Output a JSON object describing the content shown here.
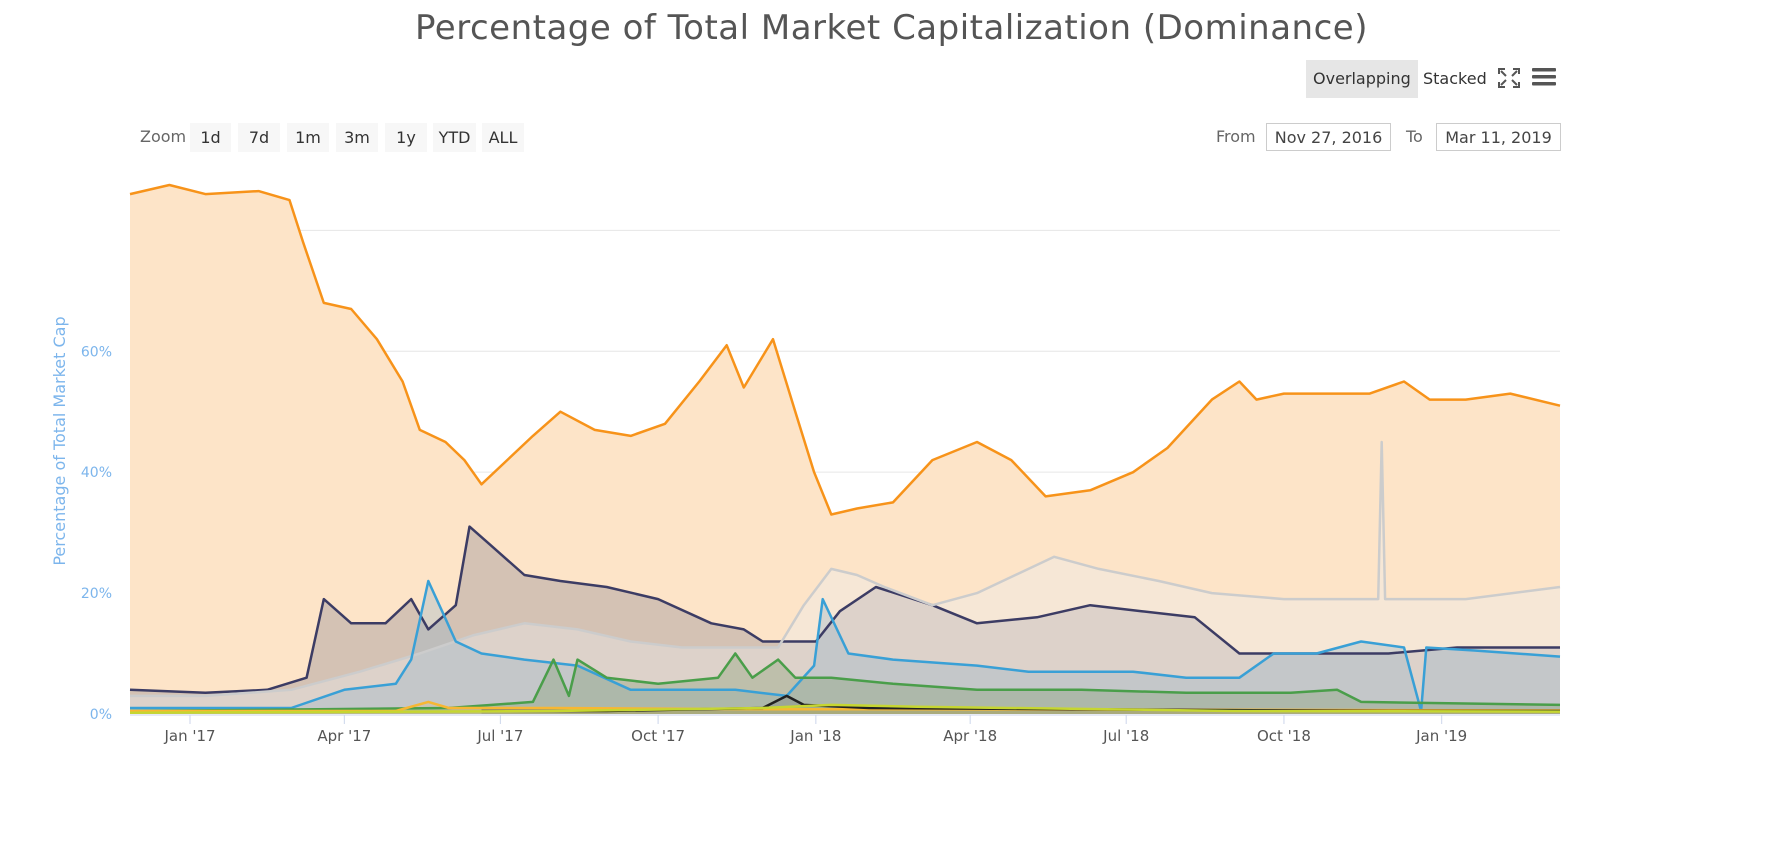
{
  "chart_title": "Percentage of Total Market Capitalization (Dominance)",
  "toolbar": {
    "overlapping_label": "Overlapping",
    "stacked_label": "Stacked",
    "fullscreen_icon": "fullscreen-icon",
    "menu_icon": "menu-icon"
  },
  "zoom": {
    "label": "Zoom",
    "buttons": [
      "1d",
      "7d",
      "1m",
      "3m",
      "1y",
      "YTD",
      "ALL"
    ]
  },
  "range": {
    "from_label": "From",
    "from_value": "Nov 27, 2016",
    "to_label": "To",
    "to_value": "Mar 11, 2019"
  },
  "colors": {
    "axis_label": "#7cb5ec",
    "grid": "#e6e6e6"
  },
  "chart_data": {
    "type": "area",
    "ylabel": "Percentage of Total Market Cap",
    "ylim": [
      0,
      88
    ],
    "xlim": [
      "2016-11-27",
      "2019-03-11"
    ],
    "yticks": [
      0,
      20,
      40,
      60
    ],
    "ytick_labels": [
      "0%",
      "20%",
      "40%",
      "60%"
    ],
    "xticks": [
      "2017-01-01",
      "2017-04-01",
      "2017-07-01",
      "2017-10-01",
      "2018-01-01",
      "2018-04-01",
      "2018-07-01",
      "2018-10-01",
      "2019-01-01"
    ],
    "xtick_labels": [
      "Jan '17",
      "Apr '17",
      "Jul '17",
      "Oct '17",
      "Jan '18",
      "Apr '18",
      "Jul '18",
      "Oct '18",
      "Jan '19"
    ],
    "grid": true,
    "legend": false,
    "series": [
      {
        "color": "#f7931a",
        "fill": "#fde4c8",
        "values": [
          [
            "2016-11-27",
            86
          ],
          [
            "2016-12-20",
            87.5
          ],
          [
            "2017-01-10",
            86
          ],
          [
            "2017-02-10",
            86.5
          ],
          [
            "2017-02-28",
            85
          ],
          [
            "2017-03-08",
            78
          ],
          [
            "2017-03-20",
            68
          ],
          [
            "2017-04-05",
            67
          ],
          [
            "2017-04-20",
            62
          ],
          [
            "2017-05-05",
            55
          ],
          [
            "2017-05-15",
            47
          ],
          [
            "2017-05-30",
            45
          ],
          [
            "2017-06-10",
            42
          ],
          [
            "2017-06-20",
            38
          ],
          [
            "2017-07-05",
            42
          ],
          [
            "2017-07-20",
            46
          ],
          [
            "2017-08-05",
            50
          ],
          [
            "2017-08-25",
            47
          ],
          [
            "2017-09-15",
            46
          ],
          [
            "2017-10-05",
            48
          ],
          [
            "2017-10-25",
            55
          ],
          [
            "2017-11-10",
            61
          ],
          [
            "2017-11-20",
            54
          ],
          [
            "2017-12-07",
            62
          ],
          [
            "2017-12-20",
            50
          ],
          [
            "2017-12-31",
            40
          ],
          [
            "2018-01-10",
            33
          ],
          [
            "2018-01-25",
            34
          ],
          [
            "2018-02-15",
            35
          ],
          [
            "2018-03-10",
            42
          ],
          [
            "2018-04-05",
            45
          ],
          [
            "2018-04-25",
            42
          ],
          [
            "2018-05-15",
            36
          ],
          [
            "2018-06-10",
            37
          ],
          [
            "2018-07-05",
            40
          ],
          [
            "2018-07-25",
            44
          ],
          [
            "2018-08-20",
            52
          ],
          [
            "2018-09-05",
            55
          ],
          [
            "2018-09-15",
            52
          ],
          [
            "2018-10-01",
            53
          ],
          [
            "2018-10-25",
            53
          ],
          [
            "2018-11-20",
            53
          ],
          [
            "2018-12-10",
            55
          ],
          [
            "2018-12-25",
            52
          ],
          [
            "2019-01-15",
            52
          ],
          [
            "2019-02-10",
            53
          ],
          [
            "2019-03-11",
            51
          ]
        ]
      },
      {
        "color": "#3c3c64",
        "fill": "rgba(90,90,120,0.25)",
        "values": [
          [
            "2016-11-27",
            4
          ],
          [
            "2017-01-10",
            3.5
          ],
          [
            "2017-02-15",
            4
          ],
          [
            "2017-03-10",
            6
          ],
          [
            "2017-03-20",
            19
          ],
          [
            "2017-04-05",
            15
          ],
          [
            "2017-04-25",
            15
          ],
          [
            "2017-05-10",
            19
          ],
          [
            "2017-05-20",
            14
          ],
          [
            "2017-06-05",
            18
          ],
          [
            "2017-06-13",
            31
          ],
          [
            "2017-06-25",
            28
          ],
          [
            "2017-07-15",
            23
          ],
          [
            "2017-08-05",
            22
          ],
          [
            "2017-09-01",
            21
          ],
          [
            "2017-10-01",
            19
          ],
          [
            "2017-11-01",
            15
          ],
          [
            "2017-11-20",
            14
          ],
          [
            "2017-12-01",
            12
          ],
          [
            "2017-12-15",
            12
          ],
          [
            "2018-01-01",
            12
          ],
          [
            "2018-01-15",
            17
          ],
          [
            "2018-02-05",
            21
          ],
          [
            "2018-03-10",
            18
          ],
          [
            "2018-04-05",
            15
          ],
          [
            "2018-05-10",
            16
          ],
          [
            "2018-06-10",
            18
          ],
          [
            "2018-07-10",
            17
          ],
          [
            "2018-08-10",
            16
          ],
          [
            "2018-09-05",
            10
          ],
          [
            "2018-10-05",
            10
          ],
          [
            "2018-12-01",
            10
          ],
          [
            "2019-01-10",
            11
          ],
          [
            "2019-03-11",
            11
          ]
        ]
      },
      {
        "color": "#cccccc",
        "fill": "rgba(235,235,235,0.4)",
        "values": [
          [
            "2016-11-27",
            3
          ],
          [
            "2017-01-10",
            3
          ],
          [
            "2017-03-01",
            4
          ],
          [
            "2017-04-10",
            7
          ],
          [
            "2017-05-15",
            10
          ],
          [
            "2017-06-15",
            13
          ],
          [
            "2017-07-15",
            15
          ],
          [
            "2017-08-15",
            14
          ],
          [
            "2017-09-15",
            12
          ],
          [
            "2017-10-15",
            11
          ],
          [
            "2017-11-15",
            11
          ],
          [
            "2017-12-10",
            11
          ],
          [
            "2017-12-25",
            18
          ],
          [
            "2018-01-10",
            24
          ],
          [
            "2018-01-25",
            23
          ],
          [
            "2018-02-10",
            21
          ],
          [
            "2018-03-10",
            18
          ],
          [
            "2018-04-05",
            20
          ],
          [
            "2018-05-05",
            24
          ],
          [
            "2018-05-20",
            26
          ],
          [
            "2018-06-15",
            24
          ],
          [
            "2018-07-20",
            22
          ],
          [
            "2018-08-20",
            20
          ],
          [
            "2018-10-01",
            19
          ],
          [
            "2018-11-01",
            19
          ],
          [
            "2018-11-25",
            19
          ],
          [
            "2018-11-27",
            45
          ],
          [
            "2018-11-29",
            19
          ],
          [
            "2018-12-15",
            19
          ],
          [
            "2019-01-15",
            19
          ],
          [
            "2019-03-11",
            21
          ]
        ]
      },
      {
        "color": "#39a0d6",
        "fill": "rgba(150,180,200,0.35)",
        "values": [
          [
            "2016-11-27",
            1
          ],
          [
            "2017-03-01",
            1
          ],
          [
            "2017-04-01",
            4
          ],
          [
            "2017-05-01",
            5
          ],
          [
            "2017-05-10",
            9
          ],
          [
            "2017-05-20",
            22
          ],
          [
            "2017-05-28",
            17
          ],
          [
            "2017-06-05",
            12
          ],
          [
            "2017-06-20",
            10
          ],
          [
            "2017-07-15",
            9
          ],
          [
            "2017-08-15",
            8
          ],
          [
            "2017-09-15",
            4
          ],
          [
            "2017-10-15",
            4
          ],
          [
            "2017-11-15",
            4
          ],
          [
            "2017-12-15",
            3
          ],
          [
            "2017-12-31",
            8
          ],
          [
            "2018-01-05",
            19
          ],
          [
            "2018-01-20",
            10
          ],
          [
            "2018-02-15",
            9
          ],
          [
            "2018-04-05",
            8
          ],
          [
            "2018-05-05",
            7
          ],
          [
            "2018-06-05",
            7
          ],
          [
            "2018-07-05",
            7
          ],
          [
            "2018-08-05",
            6
          ],
          [
            "2018-09-05",
            6
          ],
          [
            "2018-09-25",
            10
          ],
          [
            "2018-10-20",
            10
          ],
          [
            "2018-11-15",
            12
          ],
          [
            "2018-12-10",
            11
          ],
          [
            "2018-12-20",
            0.5
          ],
          [
            "2018-12-23",
            11
          ],
          [
            "2019-01-20",
            10.5
          ],
          [
            "2019-03-11",
            9.5
          ]
        ]
      },
      {
        "color": "#4a9e4a",
        "fill": "rgba(120,150,100,0.3)",
        "values": [
          [
            "2016-11-27",
            0.5
          ],
          [
            "2017-06-01",
            1
          ],
          [
            "2017-07-20",
            2
          ],
          [
            "2017-08-01",
            9
          ],
          [
            "2017-08-10",
            3
          ],
          [
            "2017-08-15",
            9
          ],
          [
            "2017-09-01",
            6
          ],
          [
            "2017-10-01",
            5
          ],
          [
            "2017-11-05",
            6
          ],
          [
            "2017-11-15",
            10
          ],
          [
            "2017-11-25",
            6
          ],
          [
            "2017-12-10",
            9
          ],
          [
            "2017-12-20",
            6
          ],
          [
            "2018-01-10",
            6
          ],
          [
            "2018-02-15",
            5
          ],
          [
            "2018-04-05",
            4
          ],
          [
            "2018-06-05",
            4
          ],
          [
            "2018-08-05",
            3.5
          ],
          [
            "2018-10-05",
            3.5
          ],
          [
            "2018-11-01",
            4
          ],
          [
            "2018-11-15",
            2
          ],
          [
            "2019-03-11",
            1.5
          ]
        ]
      },
      {
        "color": "#f7b733",
        "fill": "rgba(247,183,51,0.15)",
        "values": [
          [
            "2016-11-27",
            0.5
          ],
          [
            "2017-05-01",
            0.5
          ],
          [
            "2017-05-20",
            2
          ],
          [
            "2017-06-01",
            1
          ],
          [
            "2017-08-01",
            1
          ],
          [
            "2017-12-01",
            0.8
          ],
          [
            "2018-03-01",
            0.8
          ],
          [
            "2019-03-11",
            0.6
          ]
        ]
      },
      {
        "color": "#222222",
        "fill": "rgba(60,60,60,0.15)",
        "values": [
          [
            "2017-06-20",
            0.5
          ],
          [
            "2017-09-01",
            0.5
          ],
          [
            "2017-12-01",
            1
          ],
          [
            "2017-12-15",
            3
          ],
          [
            "2017-12-25",
            1.5
          ],
          [
            "2018-02-01",
            1
          ],
          [
            "2018-06-01",
            0.8
          ],
          [
            "2018-12-01",
            0.5
          ],
          [
            "2019-03-11",
            0.5
          ]
        ]
      },
      {
        "color": "#c6d631",
        "fill": "rgba(198,214,49,0.15)",
        "values": [
          [
            "2016-11-27",
            0.2
          ],
          [
            "2017-08-01",
            0.5
          ],
          [
            "2017-12-01",
            1
          ],
          [
            "2018-01-10",
            1.5
          ],
          [
            "2018-03-01",
            1.2
          ],
          [
            "2018-09-01",
            0.5
          ],
          [
            "2019-03-11",
            0.4
          ]
        ]
      }
    ]
  }
}
